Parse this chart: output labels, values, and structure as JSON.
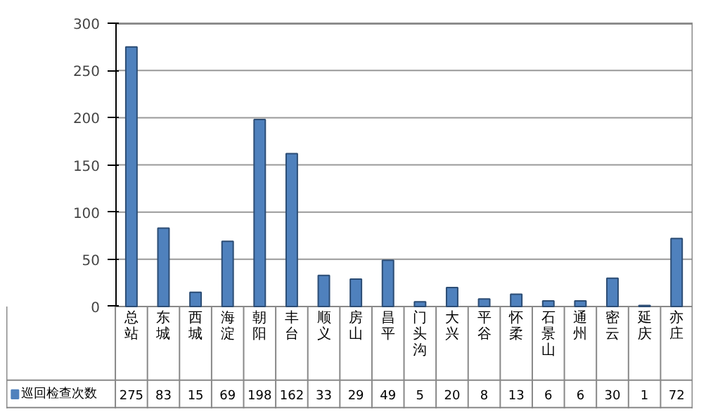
{
  "chart_data": {
    "type": "bar",
    "categories": [
      "总站",
      "东城",
      "西城",
      "海淀",
      "朝阳",
      "丰台",
      "顺义",
      "房山",
      "昌平",
      "门头沟",
      "大兴",
      "平谷",
      "怀柔",
      "石景山",
      "通州",
      "密云",
      "延庆",
      "亦庄"
    ],
    "series": [
      {
        "name": "巡回检查次数",
        "color": "#4f81bd",
        "values": [
          275,
          83,
          15,
          69,
          198,
          162,
          33,
          29,
          49,
          5,
          20,
          8,
          13,
          6,
          6,
          30,
          1,
          72
        ]
      }
    ],
    "ylim": [
      0,
      300
    ],
    "yticks": [
      0,
      50,
      100,
      150,
      200,
      250,
      300
    ],
    "grid": "y",
    "legend": "bottom left",
    "data_labels": true
  }
}
